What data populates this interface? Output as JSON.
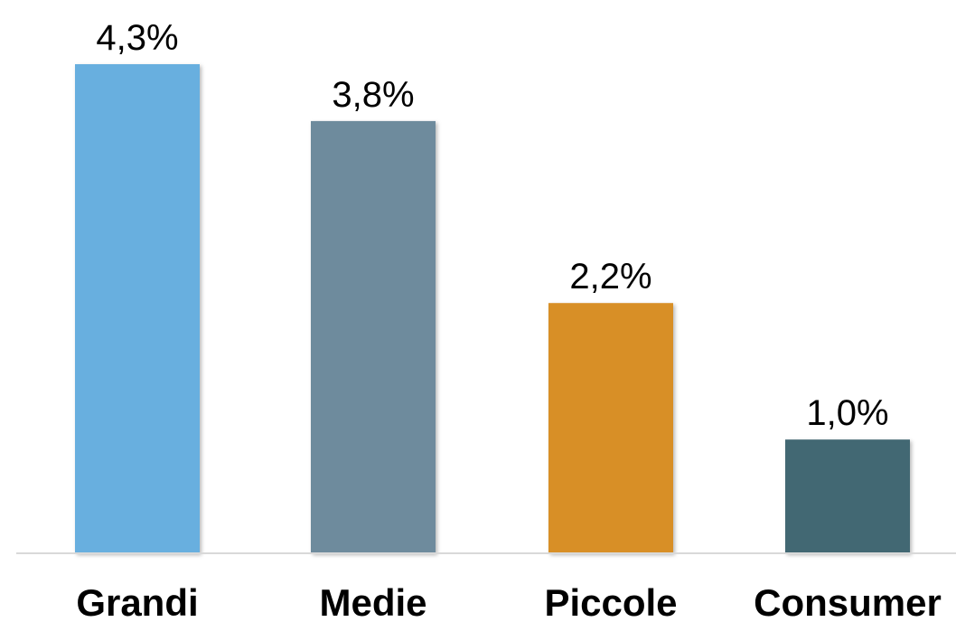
{
  "chart_data": {
    "type": "bar",
    "categories": [
      "Grandi",
      "Medie",
      "Piccole",
      "Consumer"
    ],
    "values": [
      4.3,
      3.8,
      2.2,
      1.0
    ],
    "value_labels": [
      "4,3%",
      "3,8%",
      "2,2%",
      "1,0%"
    ],
    "colors": [
      "#67AFDF",
      "#6E8B9D",
      "#D88F25",
      "#436873"
    ],
    "ylim": [
      0,
      4.3
    ],
    "grid": false,
    "legend": "none"
  }
}
